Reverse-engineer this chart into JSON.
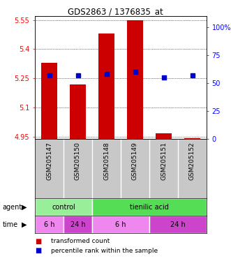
{
  "title": "GDS2863 / 1376835_at",
  "samples": [
    "GSM205147",
    "GSM205150",
    "GSM205148",
    "GSM205149",
    "GSM205151",
    "GSM205152"
  ],
  "bar_values": [
    5.33,
    5.22,
    5.48,
    5.55,
    4.97,
    4.945
  ],
  "bar_base": 4.94,
  "percentile_values": [
    57,
    57,
    58,
    60,
    55,
    57
  ],
  "ylim_left": [
    4.94,
    5.57
  ],
  "ylim_right": [
    0,
    110
  ],
  "left_ticks": [
    4.95,
    5.1,
    5.25,
    5.4,
    5.55
  ],
  "right_ticks": [
    0,
    25,
    50,
    75,
    100
  ],
  "right_tick_labels": [
    "0",
    "25",
    "50",
    "75",
    "100%"
  ],
  "bar_color": "#cc0000",
  "percentile_color": "#0000cc",
  "agent_groups": [
    {
      "label": "control",
      "start": 0,
      "end": 2,
      "color": "#99ee99"
    },
    {
      "label": "tienilic acid",
      "start": 2,
      "end": 6,
      "color": "#55dd55"
    }
  ],
  "time_groups": [
    {
      "label": "6 h",
      "start": 0,
      "end": 1,
      "color": "#ee88ee"
    },
    {
      "label": "24 h",
      "start": 1,
      "end": 2,
      "color": "#cc44cc"
    },
    {
      "label": "6 h",
      "start": 2,
      "end": 4,
      "color": "#ee88ee"
    },
    {
      "label": "24 h",
      "start": 4,
      "end": 6,
      "color": "#cc44cc"
    }
  ],
  "legend_items": [
    {
      "color": "#cc0000",
      "label": "transformed count"
    },
    {
      "color": "#0000cc",
      "label": "percentile rank within the sample"
    }
  ],
  "sample_bg_color": "#c8c8c8",
  "grid_color": "#888888"
}
